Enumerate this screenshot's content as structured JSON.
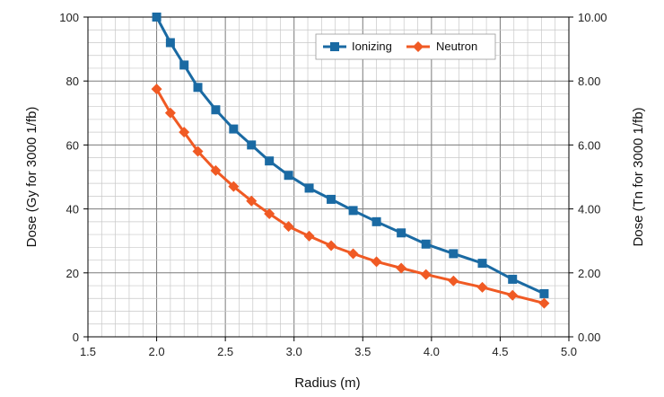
{
  "chart_data": {
    "type": "line",
    "xlabel": "Radius (m)",
    "ylabel_left": "Dose (Gy for 3000 1/fb)",
    "ylabel_right": "Dose (Tn for 3000 1/fb)",
    "xlim": [
      1.5,
      5.0
    ],
    "ylim_left": [
      0,
      100
    ],
    "ylim_right": [
      0,
      10
    ],
    "x_ticks": [
      "1.5",
      "2.0",
      "2.5",
      "3.0",
      "3.5",
      "4.0",
      "4.5",
      "5.0"
    ],
    "y_left_ticks": [
      "0",
      "20",
      "40",
      "60",
      "80",
      "100"
    ],
    "y_right_ticks": [
      "0.00",
      "2.00",
      "4.00",
      "6.00",
      "8.00",
      "10.00"
    ],
    "grid": true,
    "legend_position": "top-right",
    "series": [
      {
        "name": "Ionizing",
        "axis": "left",
        "color": "#1a6aa3",
        "marker": "square",
        "x": [
          2.0,
          2.1,
          2.2,
          2.3,
          2.43,
          2.56,
          2.69,
          2.82,
          2.96,
          3.11,
          3.27,
          3.43,
          3.6,
          3.78,
          3.96,
          4.16,
          4.37,
          4.59,
          4.82
        ],
        "y": [
          100,
          92,
          85,
          78,
          71,
          65,
          60,
          55,
          50.5,
          46.5,
          43,
          39.5,
          36,
          32.5,
          29,
          26,
          23,
          18,
          13.5
        ]
      },
      {
        "name": "Neutron",
        "axis": "right",
        "color": "#f05a24",
        "marker": "diamond",
        "x": [
          2.0,
          2.1,
          2.2,
          2.3,
          2.43,
          2.56,
          2.69,
          2.82,
          2.96,
          3.11,
          3.27,
          3.43,
          3.6,
          3.78,
          3.96,
          4.16,
          4.37,
          4.59,
          4.82
        ],
        "y": [
          7.75,
          7.0,
          6.4,
          5.8,
          5.2,
          4.7,
          4.25,
          3.85,
          3.45,
          3.15,
          2.85,
          2.6,
          2.35,
          2.15,
          1.95,
          1.75,
          1.55,
          1.3,
          1.05
        ]
      }
    ]
  }
}
